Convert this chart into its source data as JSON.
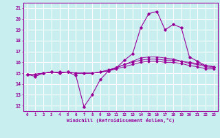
{
  "xlabel": "Windchill (Refroidissement éolien,°C)",
  "background_color": "#c8eef0",
  "grid_color": "#ffffff",
  "line_color": "#990099",
  "xlim": [
    -0.5,
    23.5
  ],
  "ylim": [
    11.5,
    21.5
  ],
  "xticks": [
    0,
    1,
    2,
    3,
    4,
    5,
    6,
    7,
    8,
    9,
    10,
    11,
    12,
    13,
    14,
    15,
    16,
    17,
    18,
    19,
    20,
    21,
    22,
    23
  ],
  "yticks": [
    12,
    13,
    14,
    15,
    16,
    17,
    18,
    19,
    20,
    21
  ],
  "hours": [
    0,
    1,
    2,
    3,
    4,
    5,
    6,
    7,
    8,
    9,
    10,
    11,
    12,
    13,
    14,
    15,
    16,
    17,
    18,
    19,
    20,
    21,
    22,
    23
  ],
  "series1": [
    14.9,
    14.7,
    15.0,
    15.1,
    15.0,
    15.1,
    14.8,
    11.9,
    13.0,
    14.4,
    15.2,
    15.5,
    16.2,
    16.8,
    19.2,
    20.5,
    20.7,
    19.0,
    19.5,
    19.2,
    16.5,
    16.1,
    15.7,
    15.6
  ],
  "series2": [
    14.9,
    14.9,
    15.0,
    15.1,
    15.1,
    15.1,
    15.0,
    15.0,
    15.0,
    15.1,
    15.3,
    15.5,
    15.8,
    16.1,
    16.4,
    16.5,
    16.5,
    16.4,
    16.3,
    16.1,
    16.0,
    15.9,
    15.7,
    15.6
  ],
  "series3": [
    14.9,
    14.9,
    15.0,
    15.1,
    15.1,
    15.1,
    15.0,
    15.0,
    15.0,
    15.1,
    15.3,
    15.5,
    15.8,
    16.0,
    16.2,
    16.3,
    16.3,
    16.2,
    16.2,
    16.1,
    15.9,
    15.8,
    15.6,
    15.5
  ],
  "series4": [
    14.9,
    14.9,
    15.0,
    15.1,
    15.1,
    15.1,
    15.0,
    15.0,
    15.0,
    15.1,
    15.2,
    15.4,
    15.6,
    15.8,
    16.0,
    16.1,
    16.1,
    16.0,
    16.0,
    15.9,
    15.7,
    15.6,
    15.4,
    15.4
  ]
}
